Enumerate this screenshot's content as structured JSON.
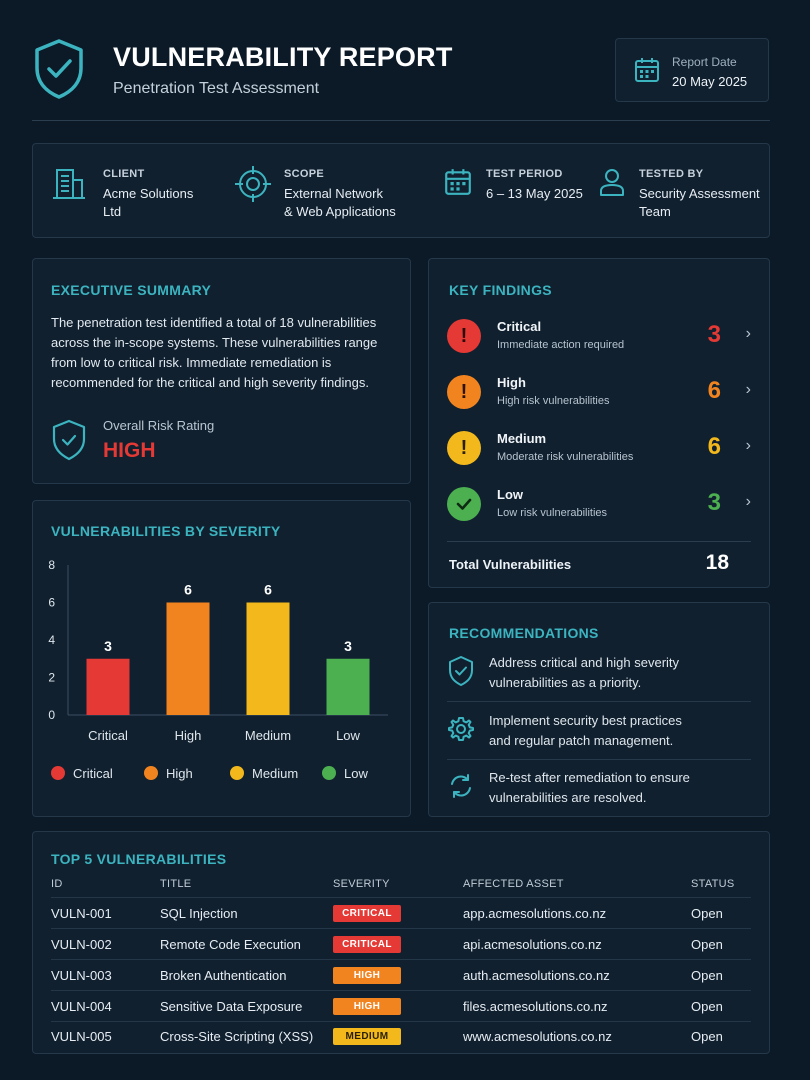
{
  "header": {
    "title": "VULNERABILITY REPORT",
    "subtitle": "Penetration Test Assessment",
    "report_date_label": "Report Date",
    "report_date": "20 May 2025"
  },
  "info": {
    "client_label": "CLIENT",
    "client_line1": "Acme Solutions",
    "client_line2": "Ltd",
    "scope_label": "SCOPE",
    "scope_line1": "External Network",
    "scope_line2": "& Web Applications",
    "period_label": "TEST PERIOD",
    "period_value": "6 – 13 May 2025",
    "tested_label": "TESTED BY",
    "tested_line1": "Security Assessment",
    "tested_line2": "Team"
  },
  "summary": {
    "title": "EXECUTIVE SUMMARY",
    "lines": [
      "The penetration test identified a total of 18 vulnerabilities",
      "across the in-scope systems. These vulnerabilities range",
      "from low to critical risk. Immediate remediation is",
      "recommended for the critical and high severity findings."
    ],
    "risk_label": "Overall Risk Rating",
    "risk_value": "HIGH"
  },
  "key_findings": {
    "title": "KEY FINDINGS",
    "items": [
      {
        "name": "Critical",
        "desc": "Immediate action required",
        "count": "3",
        "icon": "!"
      },
      {
        "name": "High",
        "desc": "High risk vulnerabilities",
        "count": "6",
        "icon": "!"
      },
      {
        "name": "Medium",
        "desc": "Moderate risk vulnerabilities",
        "count": "6",
        "icon": "!"
      },
      {
        "name": "Low",
        "desc": "Low risk vulnerabilities",
        "count": "3",
        "icon": "check"
      }
    ],
    "total_label": "Total Vulnerabilities",
    "total_value": "18"
  },
  "chart_data": {
    "type": "bar",
    "title": "VULNERABILITIES BY SEVERITY",
    "categories": [
      "Critical",
      "High",
      "Medium",
      "Low"
    ],
    "values": [
      3,
      6,
      6,
      3
    ],
    "colors": [
      "#e53935",
      "#f2841f",
      "#f2b81c",
      "#4caf50"
    ],
    "ylim": [
      0,
      8
    ],
    "yticks": [
      0,
      2,
      4,
      6,
      8
    ],
    "legend": [
      "Critical",
      "High",
      "Medium",
      "Low"
    ],
    "legend_position": "bottom",
    "grid": false
  },
  "recommendations": {
    "title": "RECOMMENDATIONS",
    "items": [
      {
        "line1": "Address critical and high severity",
        "line2": "vulnerabilities as a priority.",
        "icon": "shield-check-icon"
      },
      {
        "line1": "Implement security best practices",
        "line2": "and regular patch management.",
        "icon": "gear-icon"
      },
      {
        "line1": "Re-test after remediation to ensure",
        "line2": "vulnerabilities are resolved.",
        "icon": "refresh-icon"
      }
    ]
  },
  "top5": {
    "title": "TOP 5 VULNERABILITIES",
    "columns": [
      "ID",
      "TITLE",
      "SEVERITY",
      "AFFECTED ASSET",
      "STATUS"
    ],
    "rows": [
      {
        "id": "VULN-001",
        "title": "SQL Injection",
        "severity": "CRITICAL",
        "asset": "app.acmesolutions.co.nz",
        "status": "Open"
      },
      {
        "id": "VULN-002",
        "title": "Remote Code Execution",
        "severity": "CRITICAL",
        "asset": "api.acmesolutions.co.nz",
        "status": "Open"
      },
      {
        "id": "VULN-003",
        "title": "Broken Authentication",
        "severity": "HIGH",
        "asset": "auth.acmesolutions.co.nz",
        "status": "Open"
      },
      {
        "id": "VULN-004",
        "title": "Sensitive Data Exposure",
        "severity": "HIGH",
        "asset": "files.acmesolutions.co.nz",
        "status": "Open"
      },
      {
        "id": "VULN-005",
        "title": "Cross-Site Scripting (XSS)",
        "severity": "MEDIUM",
        "asset": "www.acmesolutions.co.nz",
        "status": "Open"
      }
    ]
  },
  "colors": {
    "background": "#0c1a28",
    "card": "#10202f",
    "accent": "#3cb4c0",
    "critical": "#e53935",
    "high": "#f2841f",
    "medium": "#f2b81c",
    "low": "#4caf50"
  }
}
